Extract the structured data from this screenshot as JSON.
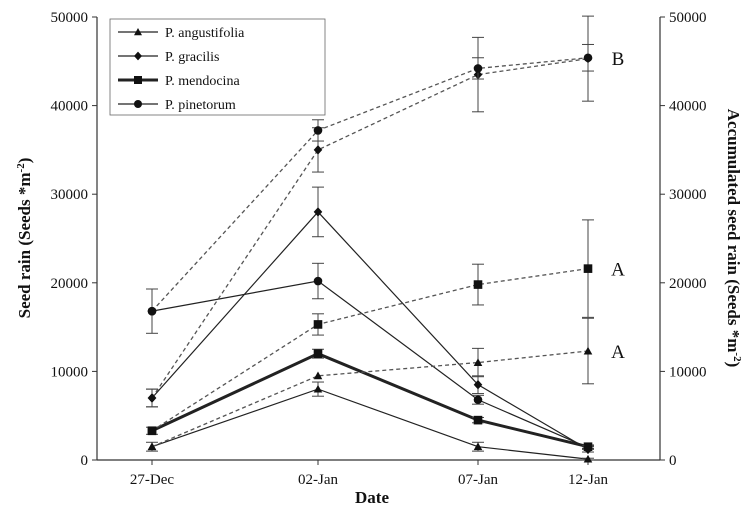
{
  "chart_data": {
    "type": "line",
    "title": "",
    "xlabel": "Date",
    "ylabel_left": "Seed rain (Seeds *m-2)",
    "ylabel_right": "Accumulated  seed rain  (Seeds *m-2)",
    "ylim_left": [
      0,
      50000
    ],
    "ylim_right": [
      0,
      50000
    ],
    "yticks": [
      "0",
      "10000",
      "20000",
      "30000",
      "40000",
      "50000"
    ],
    "categories": [
      "27-Dec",
      "02-Jan",
      "07-Jan",
      "12-Jan"
    ],
    "grid": false,
    "legend_position": "top-left",
    "legend": [
      "P. angustifolia",
      "P. gracilis",
      "P. mendocina",
      "P. pinetorum"
    ],
    "series": [
      {
        "name": "P. angustifolia",
        "axis": "left",
        "kind": "seed_rain",
        "marker": "triangle",
        "values": [
          1500,
          8000,
          1500,
          100
        ],
        "err": [
          500,
          800,
          500,
          100
        ]
      },
      {
        "name": "P. gracilis",
        "axis": "left",
        "kind": "seed_rain",
        "marker": "diamond",
        "values": [
          7000,
          28000,
          8500,
          1200
        ],
        "err": [
          1000,
          2800,
          1000,
          300
        ]
      },
      {
        "name": "P. mendocina",
        "axis": "left",
        "kind": "seed_rain",
        "marker": "square",
        "values": [
          3300,
          12000,
          4500,
          1500
        ],
        "err": [
          400,
          500,
          300,
          200
        ]
      },
      {
        "name": "P. pinetorum",
        "axis": "left",
        "kind": "seed_rain",
        "marker": "circle",
        "values": [
          16800,
          20200,
          6800,
          1400
        ],
        "err": [
          0,
          2000,
          500,
          200
        ]
      },
      {
        "name": "P. angustifolia",
        "axis": "right",
        "kind": "accumulated",
        "marker": "triangle",
        "values": [
          1500,
          9500,
          11000,
          12300
        ],
        "err": [
          0,
          0,
          1600,
          3700
        ]
      },
      {
        "name": "P. gracilis",
        "axis": "right",
        "kind": "accumulated",
        "marker": "diamond",
        "values": [
          7000,
          35000,
          43500,
          45300
        ],
        "err": [
          1000,
          2500,
          4200,
          4800
        ]
      },
      {
        "name": "P. mendocina",
        "axis": "right",
        "kind": "accumulated",
        "marker": "square",
        "values": [
          3300,
          15300,
          19800,
          21600
        ],
        "err": [
          0,
          1200,
          2300,
          5500
        ]
      },
      {
        "name": "P. pinetorum",
        "axis": "right",
        "kind": "accumulated",
        "marker": "circle",
        "values": [
          16800,
          37200,
          44200,
          45400
        ],
        "err": [
          2500,
          1200,
          1200,
          1500
        ]
      }
    ],
    "annotations": [
      {
        "text": "B",
        "x": "12-Jan",
        "y": 45400
      },
      {
        "text": "A",
        "x": "12-Jan",
        "y": 21600
      },
      {
        "text": "A",
        "x": "12-Jan",
        "y": 12300
      }
    ]
  }
}
